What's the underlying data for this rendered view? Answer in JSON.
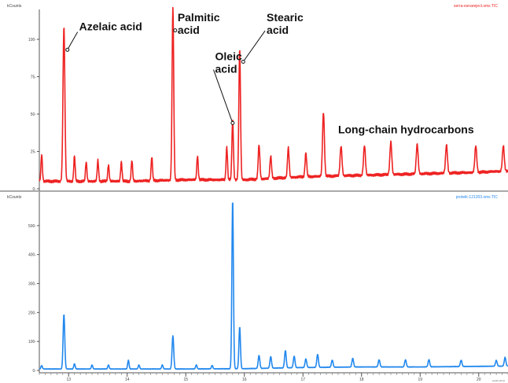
{
  "chart_data": [
    {
      "type": "line",
      "panel": "top",
      "title": "serra-esnareject.sms TIC",
      "ylabel": "kCounts",
      "color": "#ee2222",
      "xlim": [
        12.5,
        20.5
      ],
      "ylim": [
        0,
        120
      ],
      "yticks": [
        0,
        25,
        50,
        75,
        100
      ],
      "ytick_labels": [
        "0-",
        "25-",
        "50-",
        "75-",
        "100-"
      ],
      "baseline": {
        "x": [
          12.5,
          14.0,
          15.0,
          16.0,
          17.0,
          18.0,
          19.0,
          20.0,
          20.5
        ],
        "y": [
          5,
          5,
          6,
          6,
          8,
          9,
          10,
          11,
          12
        ]
      },
      "peaks": [
        {
          "x": 12.54,
          "y": 18,
          "w": 0.012
        },
        {
          "x": 12.92,
          "y": 104,
          "w": 0.016
        },
        {
          "x": 13.1,
          "y": 17,
          "w": 0.012
        },
        {
          "x": 13.3,
          "y": 13,
          "w": 0.012
        },
        {
          "x": 13.5,
          "y": 14,
          "w": 0.012
        },
        {
          "x": 13.68,
          "y": 11,
          "w": 0.012
        },
        {
          "x": 13.9,
          "y": 13,
          "w": 0.012
        },
        {
          "x": 14.08,
          "y": 14,
          "w": 0.012
        },
        {
          "x": 14.42,
          "y": 16,
          "w": 0.012
        },
        {
          "x": 14.78,
          "y": 116,
          "w": 0.014
        },
        {
          "x": 15.2,
          "y": 16,
          "w": 0.012
        },
        {
          "x": 15.7,
          "y": 22,
          "w": 0.012
        },
        {
          "x": 15.8,
          "y": 40,
          "w": 0.013
        },
        {
          "x": 15.92,
          "y": 88,
          "w": 0.014
        },
        {
          "x": 16.25,
          "y": 23,
          "w": 0.014
        },
        {
          "x": 16.45,
          "y": 15,
          "w": 0.014
        },
        {
          "x": 16.75,
          "y": 20,
          "w": 0.014
        },
        {
          "x": 17.05,
          "y": 16,
          "w": 0.014
        },
        {
          "x": 17.35,
          "y": 43,
          "w": 0.016
        },
        {
          "x": 17.65,
          "y": 20,
          "w": 0.016
        },
        {
          "x": 18.05,
          "y": 20,
          "w": 0.016
        },
        {
          "x": 18.5,
          "y": 22,
          "w": 0.016
        },
        {
          "x": 18.95,
          "y": 20,
          "w": 0.016
        },
        {
          "x": 19.45,
          "y": 19,
          "w": 0.016
        },
        {
          "x": 19.95,
          "y": 18,
          "w": 0.016
        },
        {
          "x": 20.42,
          "y": 17,
          "w": 0.016
        }
      ],
      "annotations": [
        {
          "lines": [
            "Azelaic acid"
          ],
          "label_x": 13.18,
          "label_y": 106,
          "point_x": 12.98,
          "point_y": 93
        },
        {
          "lines": [
            "Palmitic",
            "acid"
          ],
          "label_x": 14.86,
          "label_y": 112,
          "point_x": 14.82,
          "point_y": 106
        },
        {
          "lines": [
            "Stearic",
            "acid"
          ],
          "label_x": 16.38,
          "label_y": 112,
          "point_x": 15.98,
          "point_y": 85
        },
        {
          "lines": [
            "Oleic",
            "acid"
          ],
          "label_x": 15.5,
          "label_y": 86,
          "point_x": 15.8,
          "point_y": 44
        },
        {
          "lines": [
            "Long-chain hydrocarbons"
          ],
          "label_x": 17.6,
          "label_y": 37,
          "point_x": null,
          "point_y": null
        }
      ]
    },
    {
      "type": "line",
      "panel": "bottom",
      "title": "proteik-121203.sms TIC",
      "ylabel": "kCounts",
      "color": "#2288ee",
      "xlim": [
        12.5,
        20.5
      ],
      "ylim": [
        0,
        600
      ],
      "yticks": [
        0,
        100,
        200,
        300,
        400,
        500
      ],
      "ytick_labels": [
        "0-",
        "100-",
        "200-",
        "300-",
        "400-",
        "500-"
      ],
      "xticks": [
        13,
        14,
        15,
        16,
        17,
        18,
        19,
        20
      ],
      "xtick_labels": [
        "13",
        "14",
        "15",
        "16",
        "17",
        "18",
        "19",
        "20"
      ],
      "corner_label": "peaks-show",
      "baseline": {
        "x": [
          12.5,
          14.0,
          15.0,
          16.0,
          17.0,
          18.0,
          19.0,
          20.0,
          20.5
        ],
        "y": [
          5,
          5,
          5,
          6,
          10,
          12,
          12,
          14,
          15
        ]
      },
      "peaks": [
        {
          "x": 12.54,
          "y": 12,
          "w": 0.012
        },
        {
          "x": 12.92,
          "y": 190,
          "w": 0.014
        },
        {
          "x": 13.1,
          "y": 18,
          "w": 0.012
        },
        {
          "x": 13.4,
          "y": 14,
          "w": 0.012
        },
        {
          "x": 13.68,
          "y": 14,
          "w": 0.012
        },
        {
          "x": 14.02,
          "y": 30,
          "w": 0.012
        },
        {
          "x": 14.2,
          "y": 14,
          "w": 0.012
        },
        {
          "x": 14.6,
          "y": 14,
          "w": 0.012
        },
        {
          "x": 14.78,
          "y": 115,
          "w": 0.014
        },
        {
          "x": 15.18,
          "y": 14,
          "w": 0.012
        },
        {
          "x": 15.45,
          "y": 12,
          "w": 0.012
        },
        {
          "x": 15.8,
          "y": 585,
          "w": 0.013
        },
        {
          "x": 15.92,
          "y": 145,
          "w": 0.013
        },
        {
          "x": 16.25,
          "y": 45,
          "w": 0.014
        },
        {
          "x": 16.45,
          "y": 40,
          "w": 0.014
        },
        {
          "x": 16.7,
          "y": 60,
          "w": 0.014
        },
        {
          "x": 16.85,
          "y": 40,
          "w": 0.014
        },
        {
          "x": 17.05,
          "y": 30,
          "w": 0.014
        },
        {
          "x": 17.25,
          "y": 45,
          "w": 0.014
        },
        {
          "x": 17.5,
          "y": 25,
          "w": 0.014
        },
        {
          "x": 17.85,
          "y": 30,
          "w": 0.014
        },
        {
          "x": 18.3,
          "y": 25,
          "w": 0.014
        },
        {
          "x": 18.75,
          "y": 25,
          "w": 0.014
        },
        {
          "x": 19.15,
          "y": 25,
          "w": 0.014
        },
        {
          "x": 19.7,
          "y": 22,
          "w": 0.014
        },
        {
          "x": 20.3,
          "y": 20,
          "w": 0.014
        },
        {
          "x": 20.45,
          "y": 30,
          "w": 0.014
        }
      ]
    }
  ]
}
